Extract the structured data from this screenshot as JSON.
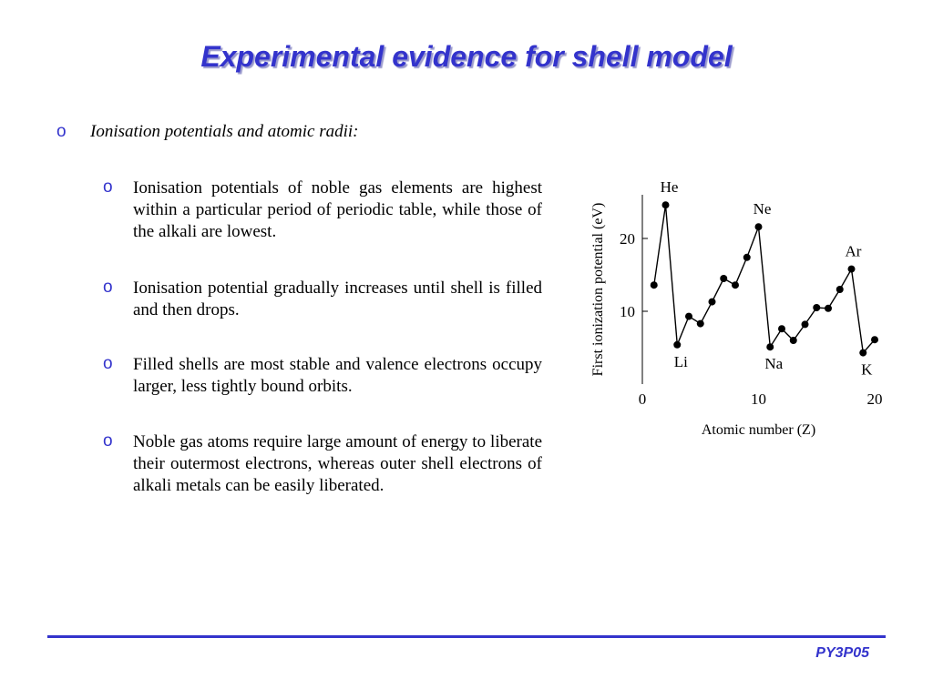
{
  "slide": {
    "title": "Experimental evidence for shell model",
    "section_heading": "Ionisation potentials and atomic radii:",
    "bullet_glyph": "o",
    "points": [
      "Ionisation potentials of noble gas elements are highest within a particular period of periodic table, while those of the alkali are lowest.",
      "Ionisation potential gradually increases until shell is filled and then drops.",
      "Filled shells are most stable and valence electrons occupy larger, less tightly bound orbits.",
      "Noble gas atoms require large amount of energy to liberate their outermost electrons, whereas outer shell electrons of alkali metals can be easily liberated."
    ],
    "footer": "PY3P05",
    "accent_color": "#3333cc"
  },
  "chart_data": {
    "type": "line",
    "xlabel": "Atomic number (Z)",
    "ylabel": "First ionization potential (eV)",
    "xlim": [
      0,
      20
    ],
    "ylim": [
      0,
      26
    ],
    "xticks": [
      0,
      10,
      20
    ],
    "yticks": [
      10,
      20
    ],
    "grid": false,
    "series": [
      {
        "x": [
          1,
          2,
          3,
          4,
          5,
          6,
          7,
          8,
          9,
          10,
          11,
          12,
          13,
          14,
          15,
          16,
          17,
          18,
          19,
          20
        ],
        "values": [
          13.6,
          24.6,
          5.4,
          9.3,
          8.3,
          11.3,
          14.5,
          13.6,
          17.4,
          21.6,
          5.1,
          7.6,
          6.0,
          8.2,
          10.5,
          10.4,
          13.0,
          15.8,
          4.3,
          6.1
        ]
      }
    ],
    "annotations": [
      {
        "text": "He",
        "x": 2
      },
      {
        "text": "Li",
        "x": 3
      },
      {
        "text": "Ne",
        "x": 10
      },
      {
        "text": "Na",
        "x": 11
      },
      {
        "text": "Ar",
        "x": 18
      },
      {
        "text": "K",
        "x": 19
      }
    ]
  }
}
